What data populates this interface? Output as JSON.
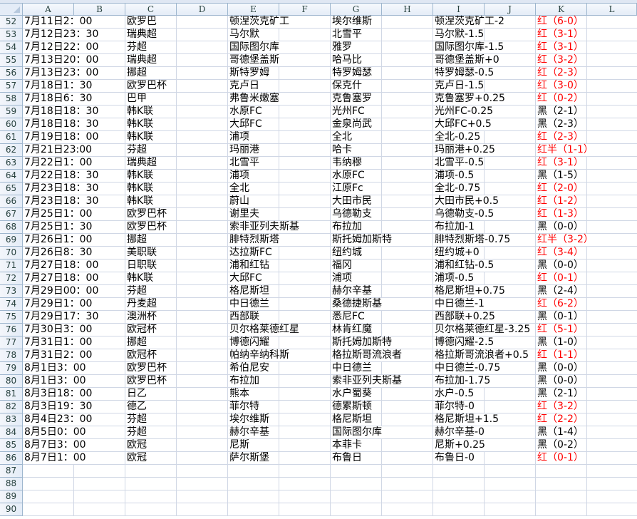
{
  "columns": [
    "A",
    "B",
    "C",
    "D",
    "E",
    "F",
    "G",
    "H",
    "I",
    "J",
    "K",
    "L"
  ],
  "result_colors": {
    "红": "#ff0000",
    "黑": "#000000"
  },
  "rows": [
    {
      "num": "52",
      "a": "7月11日2：00",
      "c": "欧罗巴",
      "e": "顿涅茨克矿工",
      "g": "埃尔维斯",
      "i": "顿涅茨克矿工-2",
      "k": "红（6-0）"
    },
    {
      "num": "53",
      "a": "7月12日23：30",
      "c": "瑞典超",
      "e": "马尔默",
      "g": "北雪平",
      "i": "马尔默-1.5",
      "k": "红（3-1）"
    },
    {
      "num": "54",
      "a": "7月12日22：00",
      "c": "芬超",
      "e": "国际图尔库",
      "g": "雅罗",
      "i": "国际图尔库-1.5",
      "k": "红（3-1）"
    },
    {
      "num": "55",
      "a": "7月13日20：00",
      "c": "瑞典超",
      "e": "哥德堡盖斯",
      "g": "哈马比",
      "i": "哥德堡盖斯+0",
      "k": "红（3-2）"
    },
    {
      "num": "56",
      "a": "7月13日23：00",
      "c": "挪超",
      "e": "斯特罗姆",
      "g": "特罗姆瑟",
      "i": "特罗姆瑟-0.5",
      "k": "红（2-3）"
    },
    {
      "num": "57",
      "a": "7月18日1：30",
      "c": "欧罗巴杯",
      "e": "克卢日",
      "g": "保克什",
      "i": "克卢日-1.5",
      "k": "红（3-0）"
    },
    {
      "num": "58",
      "a": "7月18日6：30",
      "c": "巴甲",
      "e": "弗鲁米嫩塞",
      "g": "克鲁塞罗",
      "i": "克鲁塞罗+0.25",
      "k": "红（0-2）"
    },
    {
      "num": "59",
      "a": "7月18日18：30",
      "c": "韩K联",
      "e": "水原FC",
      "g": "光州FC",
      "i": "光州FC-0.25",
      "k": "黑（2-1）"
    },
    {
      "num": "60",
      "a": "7月18日18：30",
      "c": "韩K联",
      "e": "大邱FC",
      "g": "金泉尚武",
      "i": "大邱FC+0.5",
      "k": "黑（2-3）"
    },
    {
      "num": "61",
      "a": "7月19日18：00",
      "c": "韩K联",
      "e": "浦项",
      "g": "全北",
      "i": "全北-0.25",
      "k": "红（2-3）"
    },
    {
      "num": "62",
      "a": "7月21日23:00",
      "c": "芬超",
      "e": "玛丽港",
      "g": "哈卡",
      "i": "玛丽港+0.25",
      "k": "红半（1-1）"
    },
    {
      "num": "63",
      "a": "7月22日1：00",
      "c": "瑞典超",
      "e": "北雪平",
      "g": "韦纳穆",
      "i": "北雪平-0.5",
      "k": "红（3-1）"
    },
    {
      "num": "64",
      "a": "7月22日18：30",
      "c": "韩K联",
      "e": "浦项",
      "g": "水原FC",
      "i": "浦项-0.5",
      "k": "黑（1-5）"
    },
    {
      "num": "65",
      "a": "7月23日18：30",
      "c": "韩K联",
      "e": "全北",
      "g": "江原Fc",
      "i": "全北-0.75",
      "k": "红（2-0）"
    },
    {
      "num": "66",
      "a": "7月23日18：30",
      "c": "韩K联",
      "e": "蔚山",
      "g": "大田市民",
      "i": "大田市民+0.5",
      "k": "红（1-2）"
    },
    {
      "num": "67",
      "a": "7月25日1：00",
      "c": "欧罗巴杯",
      "e": "谢里夫",
      "g": "乌德勒支",
      "i": "乌德勒支-0.5",
      "k": "红（1-3）"
    },
    {
      "num": "68",
      "a": "7月25日1：30",
      "c": "欧罗巴杯",
      "e": "索非亚列夫斯基",
      "g": "布拉加",
      "i": "布拉加-1",
      "k": "黑（0-0）"
    },
    {
      "num": "69",
      "a": "7月26日1：00",
      "c": "挪超",
      "e": "腓特烈斯塔",
      "g": "斯托姆加斯特",
      "i": "腓特烈斯塔-0.75",
      "k": "红半（3-2）"
    },
    {
      "num": "70",
      "a": "7月26日8：30",
      "c": "美职联",
      "e": "达拉斯FC",
      "g": "纽约城",
      "i": "纽约城+0",
      "k": "红（3-4）"
    },
    {
      "num": "71",
      "a": "7月27日18：00",
      "c": "日职联",
      "e": "浦和红钻",
      "g": "福冈",
      "i": "浦和红钻-0.5",
      "k": "黑（0-0）"
    },
    {
      "num": "72",
      "a": "7月27日18：00",
      "c": "韩K联",
      "e": "大邱FC",
      "g": "浦项",
      "i": "浦项-0.5",
      "k": "红（0-1）"
    },
    {
      "num": "73",
      "a": "7月29日00：00",
      "c": "芬超",
      "e": "格尼斯坦",
      "g": "赫尔辛基",
      "i": "格尼斯坦+0.75",
      "k": "黑（2-4）"
    },
    {
      "num": "74",
      "a": "7月29日1：00",
      "c": "丹麦超",
      "e": "中日德兰",
      "g": "桑德捷斯基",
      "i": "中日德兰-1",
      "k": "红（6-2）"
    },
    {
      "num": "75",
      "a": "7月29日17：30",
      "c": "澳洲杯",
      "e": "西部联",
      "g": "悉尼FC",
      "i": "西部联+0.25",
      "k": "黑（0-1）"
    },
    {
      "num": "76",
      "a": "7月30日3：00",
      "c": "欧冠杯",
      "e": "贝尔格莱德红星",
      "g": "林肯红魔",
      "i": "贝尔格莱德红星-3.25",
      "k": "红（5-1）"
    },
    {
      "num": "77",
      "a": "7月31日1：00",
      "c": "挪超",
      "e": "博德闪耀",
      "g": "斯托姆加斯特",
      "i": "博德闪耀-2.5",
      "k": "黑（1-0）"
    },
    {
      "num": "78",
      "a": "7月31日2：00",
      "c": "欧冠杯",
      "e": "帕纳辛纳科斯",
      "g": "格拉斯哥流浪者",
      "i": "格拉斯哥流浪者+0.5",
      "k": "红（1-1）"
    },
    {
      "num": "79",
      "a": "8月1日3：00",
      "c": "欧罗巴杯",
      "e": "希伯尼安",
      "g": "中日德兰",
      "i": "中日德兰-0.75",
      "k": "黑（0-0）"
    },
    {
      "num": "80",
      "a": "8月1日3：00",
      "c": "欧罗巴杯",
      "e": "布拉加",
      "g": "索非亚列夫斯基",
      "i": "布拉加-1.75",
      "k": "黑（0-0）"
    },
    {
      "num": "81",
      "a": "8月3日18：00",
      "c": "日乙",
      "e": "熊本",
      "g": "水户蜀葵",
      "i": "水户-0.5",
      "k": "黑（2-1）"
    },
    {
      "num": "82",
      "a": "8月3日19：30",
      "c": "德乙",
      "e": "菲尔特",
      "g": "德累斯顿",
      "i": "菲尔特-0",
      "k": "红（3-2）"
    },
    {
      "num": "83",
      "a": "8月4日23：00",
      "c": "芬超",
      "e": "埃尔维斯",
      "g": "格尼斯坦",
      "i": "格尼斯坦+1.5",
      "k": "红（2-2）"
    },
    {
      "num": "84",
      "a": "8月5日0：00",
      "c": "芬超",
      "e": "赫尔辛基",
      "g": "国际图尔库",
      "i": "赫尔辛基-0",
      "k": "黑（1-4）"
    },
    {
      "num": "85",
      "a": "8月7日3：00",
      "c": "欧冠",
      "e": "尼斯",
      "g": "本菲卡",
      "i": "尼斯+0.25",
      "k": "黑（0-2）"
    },
    {
      "num": "86",
      "a": "8月7日1：00",
      "c": "欧冠",
      "e": "萨尔斯堡",
      "g": "布鲁日",
      "i": "布鲁日-0",
      "k": "红（0-1）"
    },
    {
      "num": "87",
      "a": "",
      "c": "",
      "e": "",
      "g": "",
      "i": "",
      "k": ""
    },
    {
      "num": "88",
      "a": "",
      "c": "",
      "e": "",
      "g": "",
      "i": "",
      "k": ""
    },
    {
      "num": "89",
      "a": "",
      "c": "",
      "e": "",
      "g": "",
      "i": "",
      "k": ""
    },
    {
      "num": "90",
      "a": "",
      "c": "",
      "e": "",
      "g": "",
      "i": "",
      "k": ""
    }
  ]
}
